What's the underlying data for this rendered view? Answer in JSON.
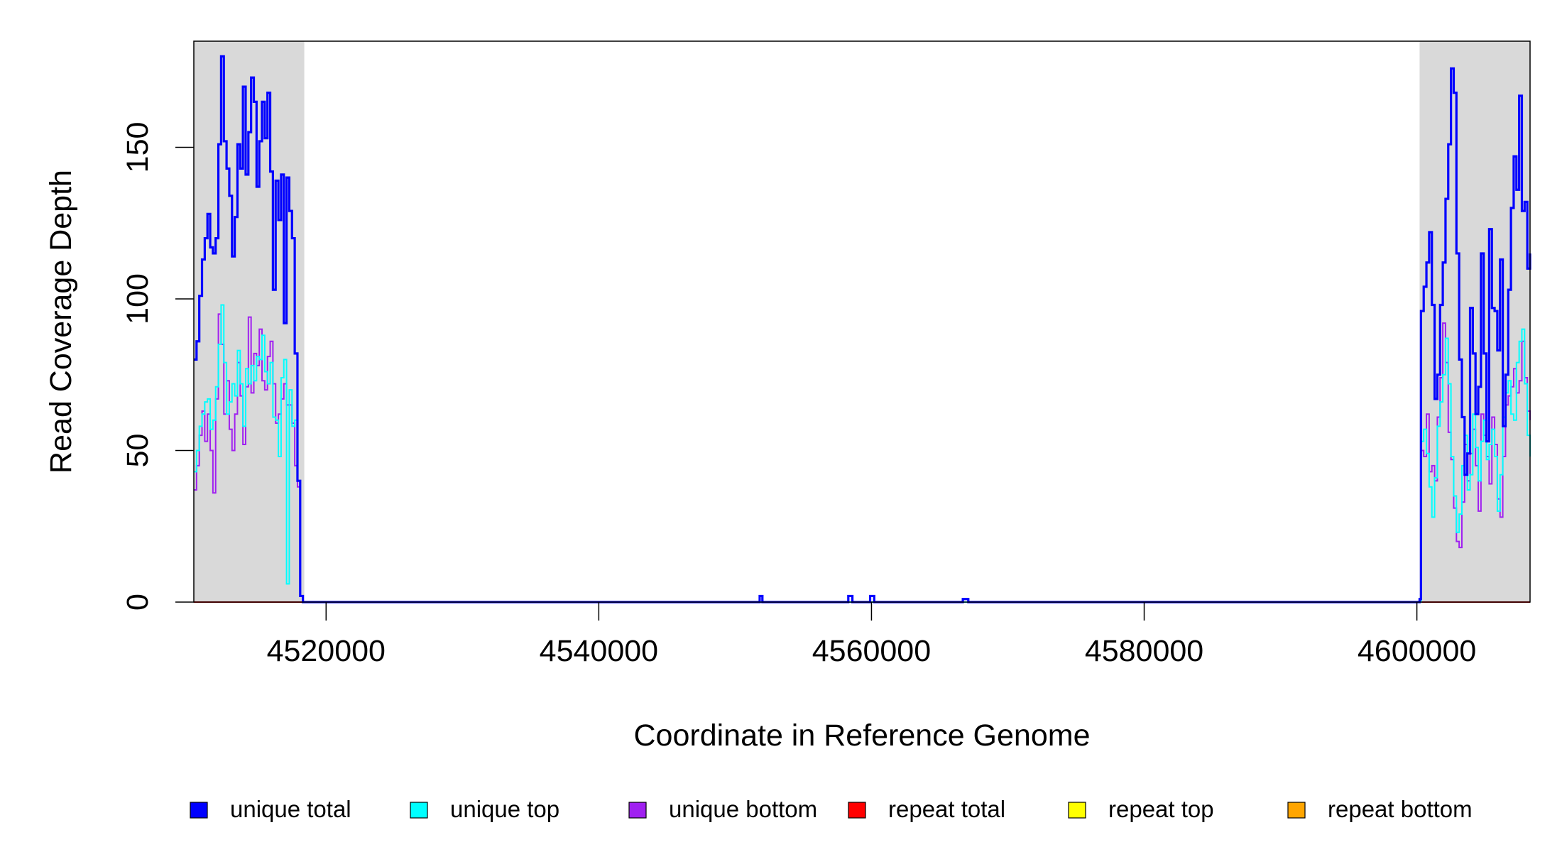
{
  "chart_data": {
    "type": "line",
    "xlabel": "Coordinate in Reference Genome",
    "ylabel": "Read Coverage Depth",
    "xlim": [
      4510300,
      4608300
    ],
    "ylim": [
      0,
      185
    ],
    "x_ticks": [
      4520000,
      4540000,
      4560000,
      4580000,
      4600000
    ],
    "x_tick_labels": [
      "4520000",
      "4540000",
      "4560000",
      "4580000",
      "4600000"
    ],
    "y_ticks": [
      0,
      50,
      100,
      150
    ],
    "y_tick_labels": [
      "0",
      "50",
      "100",
      "150"
    ],
    "shaded_regions": [
      [
        4510300,
        4518400
      ],
      [
        4600200,
        4608300
      ]
    ],
    "legend_position": "bottom",
    "legend": [
      {
        "label": "unique total",
        "color": "#0000ff"
      },
      {
        "label": "unique top",
        "color": "#00ffff"
      },
      {
        "label": "unique bottom",
        "color": "#a020f0"
      },
      {
        "label": "repeat total",
        "color": "#ff0000"
      },
      {
        "label": "repeat top",
        "color": "#ffff00"
      },
      {
        "label": "repeat bottom",
        "color": "#ffa500"
      }
    ],
    "series": [
      {
        "name": "unique total",
        "color": "#0000ff",
        "x": [
          4510300,
          4510500,
          4510700,
          4510900,
          4511100,
          4511300,
          4511500,
          4511700,
          4511900,
          4512100,
          4512300,
          4512500,
          4512700,
          4512900,
          4513100,
          4513300,
          4513500,
          4513700,
          4513900,
          4514100,
          4514300,
          4514500,
          4514700,
          4514900,
          4515100,
          4515300,
          4515500,
          4515700,
          4515900,
          4516100,
          4516300,
          4516500,
          4516700,
          4516900,
          4517100,
          4517300,
          4517500,
          4517700,
          4517900,
          4518100,
          4518300,
          4518450,
          4518500,
          4530000,
          4551700,
          4551800,
          4552000,
          4558200,
          4558300,
          4558600,
          4559800,
          4559900,
          4560200,
          4566500,
          4566700,
          4567100,
          4590000,
          4600000,
          4600200,
          4600300,
          4600500,
          4600700,
          4600900,
          4601100,
          4601300,
          4601500,
          4601700,
          4601900,
          4602100,
          4602300,
          4602500,
          4602700,
          4602900,
          4603100,
          4603300,
          4603500,
          4603700,
          4603900,
          4604100,
          4604300,
          4604500,
          4604700,
          4604900,
          4605100,
          4605300,
          4605500,
          4605700,
          4605900,
          4606100,
          4606300,
          4606500,
          4606700,
          4606900,
          4607100,
          4607300,
          4607500,
          4607700,
          4607900,
          4608100,
          4608300
        ],
        "y": [
          80,
          86,
          101,
          113,
          120,
          128,
          117,
          115,
          120,
          151,
          180,
          152,
          143,
          134,
          114,
          127,
          151,
          143,
          170,
          141,
          155,
          173,
          165,
          137,
          152,
          165,
          153,
          168,
          142,
          103,
          139,
          126,
          141,
          92,
          140,
          129,
          120,
          82,
          40,
          2,
          0,
          0,
          0,
          0,
          0,
          2,
          0,
          0,
          2,
          0,
          0,
          2,
          0,
          0,
          1,
          0,
          0,
          0,
          1,
          96,
          104,
          112,
          122,
          98,
          67,
          75,
          98,
          112,
          133,
          151,
          176,
          168,
          115,
          80,
          61,
          42,
          49,
          97,
          82,
          62,
          71,
          115,
          82,
          53,
          123,
          97,
          96,
          83,
          113,
          58,
          75,
          103,
          130,
          147,
          136,
          167,
          129,
          132,
          110,
          115
        ]
      },
      {
        "name": "unique top",
        "color": "#00ffff",
        "x": [
          4510300,
          4510500,
          4510700,
          4510900,
          4511100,
          4511300,
          4511500,
          4511700,
          4511900,
          4512100,
          4512300,
          4512500,
          4512700,
          4512900,
          4513100,
          4513300,
          4513500,
          4513700,
          4513900,
          4514100,
          4514300,
          4514500,
          4514700,
          4514900,
          4515100,
          4515300,
          4515500,
          4515700,
          4515900,
          4516100,
          4516300,
          4516500,
          4516700,
          4516900,
          4517100,
          4517300,
          4517500,
          4517700,
          4517900,
          4518100,
          4518300,
          4518450,
          4518500,
          4600200,
          4600300,
          4600500,
          4600700,
          4600900,
          4601100,
          4601300,
          4601500,
          4601700,
          4601900,
          4602100,
          4602300,
          4602500,
          4602700,
          4602900,
          4603100,
          4603300,
          4603500,
          4603700,
          4603900,
          4604100,
          4604300,
          4604500,
          4604700,
          4604900,
          4605100,
          4605300,
          4605500,
          4605700,
          4605900,
          4606100,
          4606300,
          4606500,
          4606700,
          4606900,
          4607100,
          4607300,
          4607500,
          4607700,
          4607900,
          4608100,
          4608300
        ],
        "y": [
          43,
          50,
          58,
          62,
          66,
          67,
          57,
          60,
          71,
          85,
          98,
          79,
          62,
          66,
          72,
          68,
          83,
          72,
          58,
          77,
          72,
          78,
          73,
          81,
          80,
          88,
          76,
          72,
          79,
          61,
          60,
          48,
          74,
          80,
          6,
          70,
          58,
          60,
          40,
          2,
          0,
          0,
          0,
          0,
          53,
          57,
          49,
          38,
          28,
          41,
          58,
          66,
          75,
          87,
          72,
          48,
          35,
          23,
          29,
          45,
          55,
          37,
          42,
          62,
          51,
          40,
          53,
          60,
          47,
          52,
          57,
          48,
          30,
          42,
          61,
          69,
          73,
          62,
          60,
          79,
          86,
          90,
          72,
          55,
          48
        ]
      },
      {
        "name": "unique bottom",
        "color": "#a020f0",
        "x": [
          4510300,
          4510500,
          4510700,
          4510900,
          4511100,
          4511300,
          4511500,
          4511700,
          4511900,
          4512100,
          4512300,
          4512500,
          4512700,
          4512900,
          4513100,
          4513300,
          4513500,
          4513700,
          4513900,
          4514100,
          4514300,
          4514500,
          4514700,
          4514900,
          4515100,
          4515300,
          4515500,
          4515700,
          4515900,
          4516100,
          4516300,
          4516500,
          4516700,
          4516900,
          4517100,
          4517300,
          4517500,
          4517700,
          4517900,
          4518100,
          4518300,
          4518450,
          4518500,
          4600200,
          4600300,
          4600500,
          4600700,
          4600900,
          4601100,
          4601300,
          4601500,
          4601700,
          4601900,
          4602100,
          4602300,
          4602500,
          4602700,
          4602900,
          4603100,
          4603300,
          4603500,
          4603700,
          4603900,
          4604100,
          4604300,
          4604500,
          4604700,
          4604900,
          4605100,
          4605300,
          4605500,
          4605700,
          4605900,
          4606100,
          4606300,
          4606500,
          4606700,
          4606900,
          4607100,
          4607300,
          4607500,
          4607700,
          4607900,
          4608100,
          4608300
        ],
        "y": [
          37,
          45,
          55,
          63,
          53,
          62,
          50,
          36,
          67,
          95,
          85,
          62,
          73,
          57,
          50,
          62,
          79,
          68,
          52,
          71,
          94,
          69,
          82,
          78,
          90,
          73,
          70,
          81,
          86,
          72,
          59,
          62,
          67,
          72,
          65,
          65,
          59,
          45,
          38,
          2,
          0,
          0,
          0,
          0,
          50,
          48,
          62,
          43,
          45,
          40,
          61,
          74,
          92,
          79,
          56,
          47,
          31,
          20,
          18,
          33,
          52,
          40,
          49,
          57,
          45,
          30,
          62,
          55,
          48,
          39,
          61,
          52,
          34,
          28,
          48,
          65,
          68,
          71,
          77,
          69,
          73,
          86,
          74,
          63,
          60
        ]
      },
      {
        "name": "repeat total",
        "color": "#ff0000",
        "x": [
          4510300,
          4608300
        ],
        "y": [
          0,
          0
        ]
      },
      {
        "name": "repeat top",
        "color": "#ffff00",
        "x": [
          4510300,
          4608300
        ],
        "y": [
          0,
          0
        ]
      },
      {
        "name": "repeat bottom",
        "color": "#ffa500",
        "x": [
          4510300,
          4608300
        ],
        "y": [
          0,
          0
        ]
      }
    ]
  }
}
